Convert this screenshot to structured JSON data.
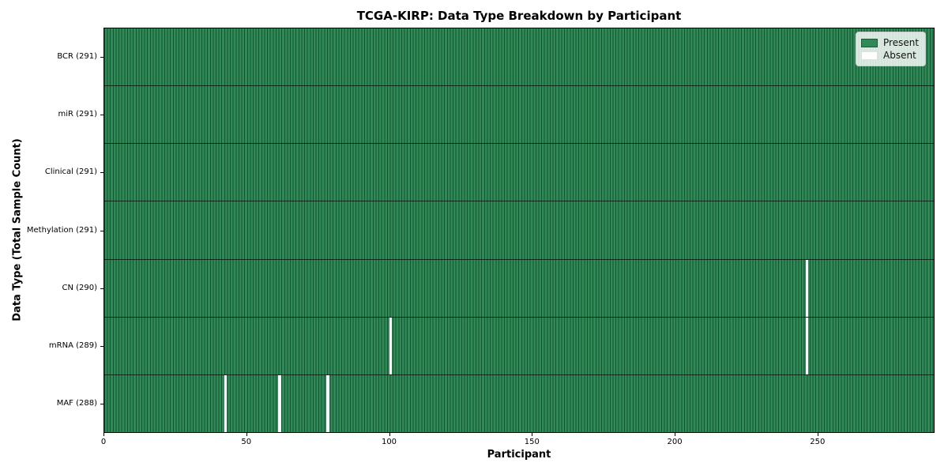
{
  "figure": {
    "title": "TCGA-KIRP: Data Type Breakdown by Participant",
    "xlabel": "Participant",
    "ylabel": "Data Type (Total Sample Count)"
  },
  "legend": {
    "position": "upper right",
    "items": [
      {
        "label": "Present",
        "color": "#2e8b57"
      },
      {
        "label": "Absent",
        "color": "#ffffff"
      }
    ]
  },
  "chart_data": {
    "type": "heatmap",
    "title": "TCGA-KIRP: Data Type Breakdown by Participant",
    "xlabel": "Participant",
    "ylabel": "Data Type (Total Sample Count)",
    "n_participants": 291,
    "x_range": [
      0,
      291
    ],
    "x_ticks": [
      0,
      50,
      100,
      150,
      200,
      250
    ],
    "present_color": "#2e8b57",
    "absent_color": "#ffffff",
    "grid": "cell-borders",
    "legend_entries": [
      "Present",
      "Absent"
    ],
    "rows": [
      {
        "data_type": "BCR",
        "label": "BCR (291)",
        "total": 291,
        "absent_participants": []
      },
      {
        "data_type": "miR",
        "label": "miR (291)",
        "total": 291,
        "absent_participants": []
      },
      {
        "data_type": "Clinical",
        "label": "Clinical (291)",
        "total": 291,
        "absent_participants": []
      },
      {
        "data_type": "Methylation",
        "label": "Methylation (291)",
        "total": 291,
        "absent_participants": []
      },
      {
        "data_type": "CN",
        "label": "CN (290)",
        "total": 290,
        "absent_participants": [
          246
        ]
      },
      {
        "data_type": "mRNA",
        "label": "mRNA (289)",
        "total": 289,
        "absent_participants": [
          100,
          246
        ]
      },
      {
        "data_type": "MAF",
        "label": "MAF (288)",
        "total": 288,
        "absent_participants": [
          42,
          61,
          78
        ]
      }
    ]
  }
}
